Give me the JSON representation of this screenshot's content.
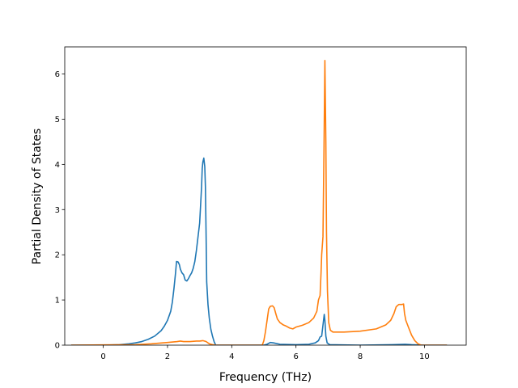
{
  "chart_data": {
    "type": "line",
    "title": "",
    "xlabel": "Frequency (THz)",
    "ylabel": "Partial Density of States",
    "xlim": [
      -1.2,
      11.3
    ],
    "ylim": [
      0,
      6.6
    ],
    "xticks": [
      0,
      2,
      4,
      6,
      8,
      10
    ],
    "yticks": [
      0,
      1,
      2,
      3,
      4,
      5,
      6
    ],
    "grid": false,
    "legend": "none",
    "series": [
      {
        "color": "#1f77b4",
        "points": [
          [
            -1.0,
            0
          ],
          [
            0.0,
            0
          ],
          [
            0.5,
            0.01
          ],
          [
            0.8,
            0.03
          ],
          [
            1.0,
            0.05
          ],
          [
            1.2,
            0.08
          ],
          [
            1.4,
            0.13
          ],
          [
            1.6,
            0.2
          ],
          [
            1.8,
            0.32
          ],
          [
            1.9,
            0.42
          ],
          [
            2.0,
            0.55
          ],
          [
            2.1,
            0.75
          ],
          [
            2.15,
            0.95
          ],
          [
            2.2,
            1.25
          ],
          [
            2.25,
            1.6
          ],
          [
            2.28,
            1.85
          ],
          [
            2.33,
            1.84
          ],
          [
            2.37,
            1.78
          ],
          [
            2.4,
            1.68
          ],
          [
            2.45,
            1.6
          ],
          [
            2.5,
            1.56
          ],
          [
            2.55,
            1.44
          ],
          [
            2.6,
            1.42
          ],
          [
            2.65,
            1.47
          ],
          [
            2.7,
            1.54
          ],
          [
            2.75,
            1.6
          ],
          [
            2.8,
            1.7
          ],
          [
            2.85,
            1.85
          ],
          [
            2.9,
            2.1
          ],
          [
            2.95,
            2.4
          ],
          [
            3.0,
            2.7
          ],
          [
            3.03,
            3.1
          ],
          [
            3.06,
            3.5
          ],
          [
            3.08,
            3.9
          ],
          [
            3.1,
            4.05
          ],
          [
            3.13,
            4.14
          ],
          [
            3.16,
            3.95
          ],
          [
            3.18,
            3.5
          ],
          [
            3.2,
            2.5
          ],
          [
            3.22,
            1.4
          ],
          [
            3.26,
            0.9
          ],
          [
            3.3,
            0.6
          ],
          [
            3.35,
            0.35
          ],
          [
            3.4,
            0.2
          ],
          [
            3.45,
            0.08
          ],
          [
            3.5,
            0
          ],
          [
            5.0,
            0
          ],
          [
            5.1,
            0.02
          ],
          [
            5.2,
            0.06
          ],
          [
            5.3,
            0.05
          ],
          [
            5.5,
            0.02
          ],
          [
            6.0,
            0.01
          ],
          [
            6.4,
            0.02
          ],
          [
            6.6,
            0.05
          ],
          [
            6.7,
            0.1
          ],
          [
            6.75,
            0.18
          ],
          [
            6.8,
            0.2
          ],
          [
            6.85,
            0.5
          ],
          [
            6.88,
            0.68
          ],
          [
            6.9,
            0.55
          ],
          [
            6.93,
            0.2
          ],
          [
            6.97,
            0.05
          ],
          [
            7.05,
            0.01
          ],
          [
            8.0,
            0
          ],
          [
            9.0,
            0.01
          ],
          [
            9.4,
            0.02
          ],
          [
            9.6,
            0.01
          ],
          [
            10.0,
            0
          ],
          [
            10.7,
            0
          ]
        ]
      },
      {
        "color": "#ff7f0e",
        "points": [
          [
            -1.0,
            0
          ],
          [
            1.0,
            0.01
          ],
          [
            1.5,
            0.03
          ],
          [
            2.0,
            0.06
          ],
          [
            2.3,
            0.08
          ],
          [
            2.4,
            0.09
          ],
          [
            2.5,
            0.08
          ],
          [
            2.7,
            0.08
          ],
          [
            2.9,
            0.09
          ],
          [
            3.0,
            0.09
          ],
          [
            3.1,
            0.1
          ],
          [
            3.2,
            0.08
          ],
          [
            3.3,
            0.03
          ],
          [
            3.4,
            0.01
          ],
          [
            3.5,
            0
          ],
          [
            4.95,
            0
          ],
          [
            5.0,
            0.1
          ],
          [
            5.05,
            0.3
          ],
          [
            5.1,
            0.55
          ],
          [
            5.15,
            0.8
          ],
          [
            5.2,
            0.86
          ],
          [
            5.27,
            0.87
          ],
          [
            5.32,
            0.83
          ],
          [
            5.37,
            0.7
          ],
          [
            5.42,
            0.58
          ],
          [
            5.5,
            0.5
          ],
          [
            5.6,
            0.45
          ],
          [
            5.7,
            0.42
          ],
          [
            5.8,
            0.38
          ],
          [
            5.9,
            0.36
          ],
          [
            6.0,
            0.4
          ],
          [
            6.2,
            0.44
          ],
          [
            6.4,
            0.5
          ],
          [
            6.55,
            0.6
          ],
          [
            6.65,
            0.75
          ],
          [
            6.7,
            1.0
          ],
          [
            6.75,
            1.1
          ],
          [
            6.78,
            1.6
          ],
          [
            6.8,
            2.0
          ],
          [
            6.84,
            2.4
          ],
          [
            6.87,
            4.2
          ],
          [
            6.9,
            6.3
          ],
          [
            6.93,
            4.5
          ],
          [
            6.95,
            2.5
          ],
          [
            6.98,
            1.2
          ],
          [
            7.02,
            0.5
          ],
          [
            7.07,
            0.33
          ],
          [
            7.15,
            0.29
          ],
          [
            7.5,
            0.29
          ],
          [
            8.0,
            0.31
          ],
          [
            8.5,
            0.36
          ],
          [
            8.8,
            0.45
          ],
          [
            8.95,
            0.55
          ],
          [
            9.05,
            0.7
          ],
          [
            9.12,
            0.85
          ],
          [
            9.2,
            0.9
          ],
          [
            9.3,
            0.9
          ],
          [
            9.35,
            0.91
          ],
          [
            9.38,
            0.7
          ],
          [
            9.42,
            0.55
          ],
          [
            9.5,
            0.4
          ],
          [
            9.6,
            0.22
          ],
          [
            9.7,
            0.1
          ],
          [
            9.8,
            0.03
          ],
          [
            9.9,
            0
          ],
          [
            10.7,
            0
          ]
        ]
      }
    ]
  }
}
